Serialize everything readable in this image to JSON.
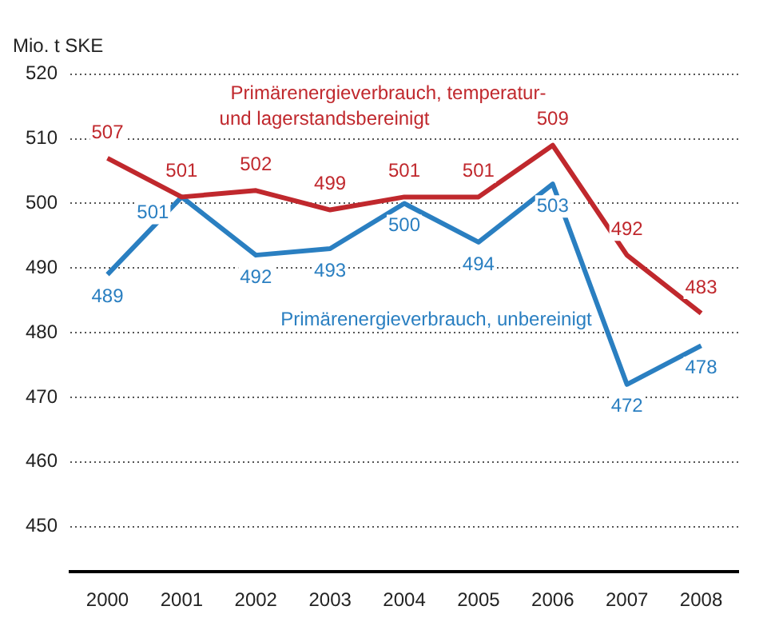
{
  "chart_data": {
    "type": "line",
    "ylabel": "Mio. t SKE",
    "categories": [
      "2000",
      "2001",
      "2002",
      "2003",
      "2004",
      "2005",
      "2006",
      "2007",
      "2008"
    ],
    "series": [
      {
        "name": "Primärenergieverbrauch, temperatur- und lagerstandsbereinigt",
        "color": "#c0282d",
        "values": [
          507,
          501,
          502,
          499,
          501,
          501,
          509,
          492,
          483
        ]
      },
      {
        "name": "Primärenergieverbrauch, unbereinigt",
        "color": "#2a7fc1",
        "values": [
          489,
          501,
          492,
          493,
          500,
          494,
          503,
          472,
          478
        ]
      }
    ],
    "ylim": [
      443,
      520
    ],
    "yticks": [
      450,
      460,
      470,
      480,
      490,
      500,
      510,
      520
    ],
    "grid": "y",
    "legend": false,
    "data_labels": true,
    "marker": "none",
    "line_style": "solid"
  }
}
